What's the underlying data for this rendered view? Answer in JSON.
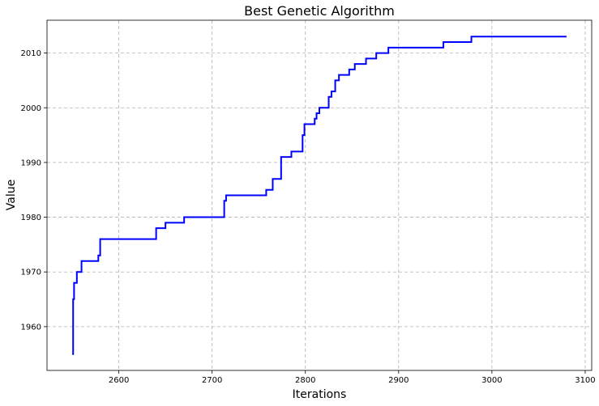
{
  "chart_data": {
    "type": "line",
    "title": "Best Genetic Algorithm",
    "xlabel": "Iterations",
    "ylabel": "Value",
    "xlim": [
      2523,
      3107
    ],
    "ylim": [
      1952,
      2016
    ],
    "xticks": [
      2600,
      2700,
      2800,
      2900,
      3000,
      3100
    ],
    "yticks": [
      1960,
      1970,
      1980,
      1990,
      2000,
      2010
    ],
    "grid": true,
    "series": [
      {
        "color": "#0000ff",
        "step": true,
        "x": [
          2550,
          2551,
          2552,
          2553,
          2555,
          2560,
          2578,
          2580,
          2640,
          2650,
          2670,
          2713,
          2715,
          2758,
          2765,
          2774,
          2785,
          2797,
          2799,
          2810,
          2812,
          2815,
          2825,
          2828,
          2832,
          2836,
          2847,
          2853,
          2865,
          2876,
          2889,
          2948,
          2978,
          3080
        ],
        "y": [
          1955,
          1965,
          1968,
          1968,
          1970,
          1972,
          1973,
          1976,
          1978,
          1979,
          1980,
          1983,
          1984,
          1985,
          1987,
          1991,
          1992,
          1995,
          1997,
          1998,
          1999,
          2000,
          2002,
          2003,
          2005,
          2006,
          2007,
          2008,
          2009,
          2010,
          2011,
          2012,
          2013,
          2013
        ]
      }
    ]
  }
}
